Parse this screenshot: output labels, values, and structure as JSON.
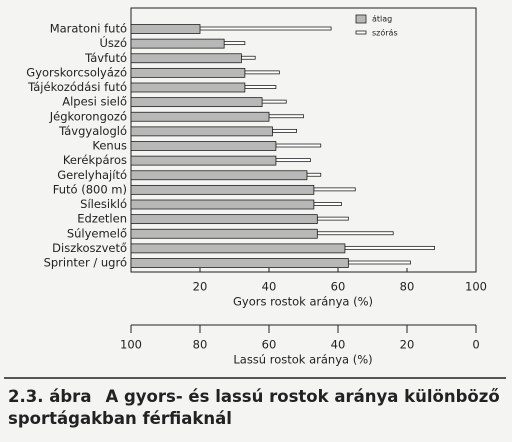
{
  "chart_data": {
    "type": "bar",
    "orientation": "horizontal",
    "categories": [
      "Maratoni futó",
      "Úszó",
      "Távfutó",
      "Gyorskorcsolyázó",
      "Tájékozódási futó",
      "Alpesi sielő",
      "Jégkorongozó",
      "Távgyalogló",
      "Kenus",
      "Kerékpáros",
      "Gerelyhajító",
      "Futó (800 m)",
      "Sílesikló",
      "Edzetlen",
      "Súlyemelő",
      "Diszkoszvető",
      "Sprinter / ugró"
    ],
    "series": [
      {
        "name": "átlag",
        "color": "#b8b8b8",
        "values": [
          20,
          27,
          32,
          33,
          33,
          38,
          40,
          41,
          42,
          42,
          51,
          53,
          53,
          54,
          54,
          62,
          63
        ]
      },
      {
        "name": "szórás",
        "color": "#ffffff",
        "values": [
          38,
          6,
          4,
          10,
          9,
          7,
          10,
          7,
          13,
          10,
          4,
          12,
          8,
          9,
          22,
          26,
          18
        ]
      }
    ],
    "xlim": [
      0,
      100
    ],
    "xticks": [
      20,
      40,
      60,
      80,
      100
    ],
    "xlabel": "Gyors rostok aránya (%)",
    "x2lim": [
      100,
      0
    ],
    "x2ticks": [
      100,
      80,
      60,
      40,
      20,
      0
    ],
    "x2label": "Lassú rostok aránya (%)",
    "caption_number": "2.3. ábra",
    "caption_text": "A gyors- és lassú rostok aránya különböző sportágakban férfiaknál"
  }
}
